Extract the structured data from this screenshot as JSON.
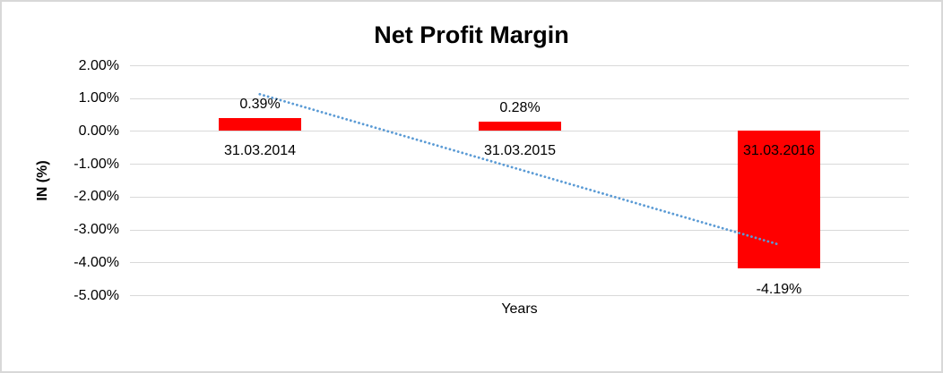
{
  "chart_data": {
    "type": "bar",
    "title": "Net Profit Margin",
    "categories": [
      "31.03.2014",
      "31.03.2015",
      "31.03.2016"
    ],
    "values": [
      0.39,
      0.28,
      -4.19
    ],
    "data_labels": [
      "0.39%",
      "0.28%",
      "-4.19%"
    ],
    "xlabel": "Years",
    "ylabel": "IN (%)",
    "ylim": [
      -5,
      2
    ],
    "ytick_values": [
      2,
      1,
      0,
      -1,
      -2,
      -3,
      -4,
      -5
    ],
    "ytick_labels": [
      "2.00%",
      "1.00%",
      "0.00%",
      "-1.00%",
      "-2.00%",
      "-3.00%",
      "-4.00%",
      "-5.00%"
    ],
    "grid": true,
    "legend": "none",
    "bar_color": "#FF0000",
    "text_color": "#000000",
    "gridline_color": "#D9D9D9",
    "trendline": {
      "type": "linear",
      "style": "dotted",
      "color": "#5B9BD5",
      "start_value": 1.12,
      "end_value": -3.46
    }
  }
}
